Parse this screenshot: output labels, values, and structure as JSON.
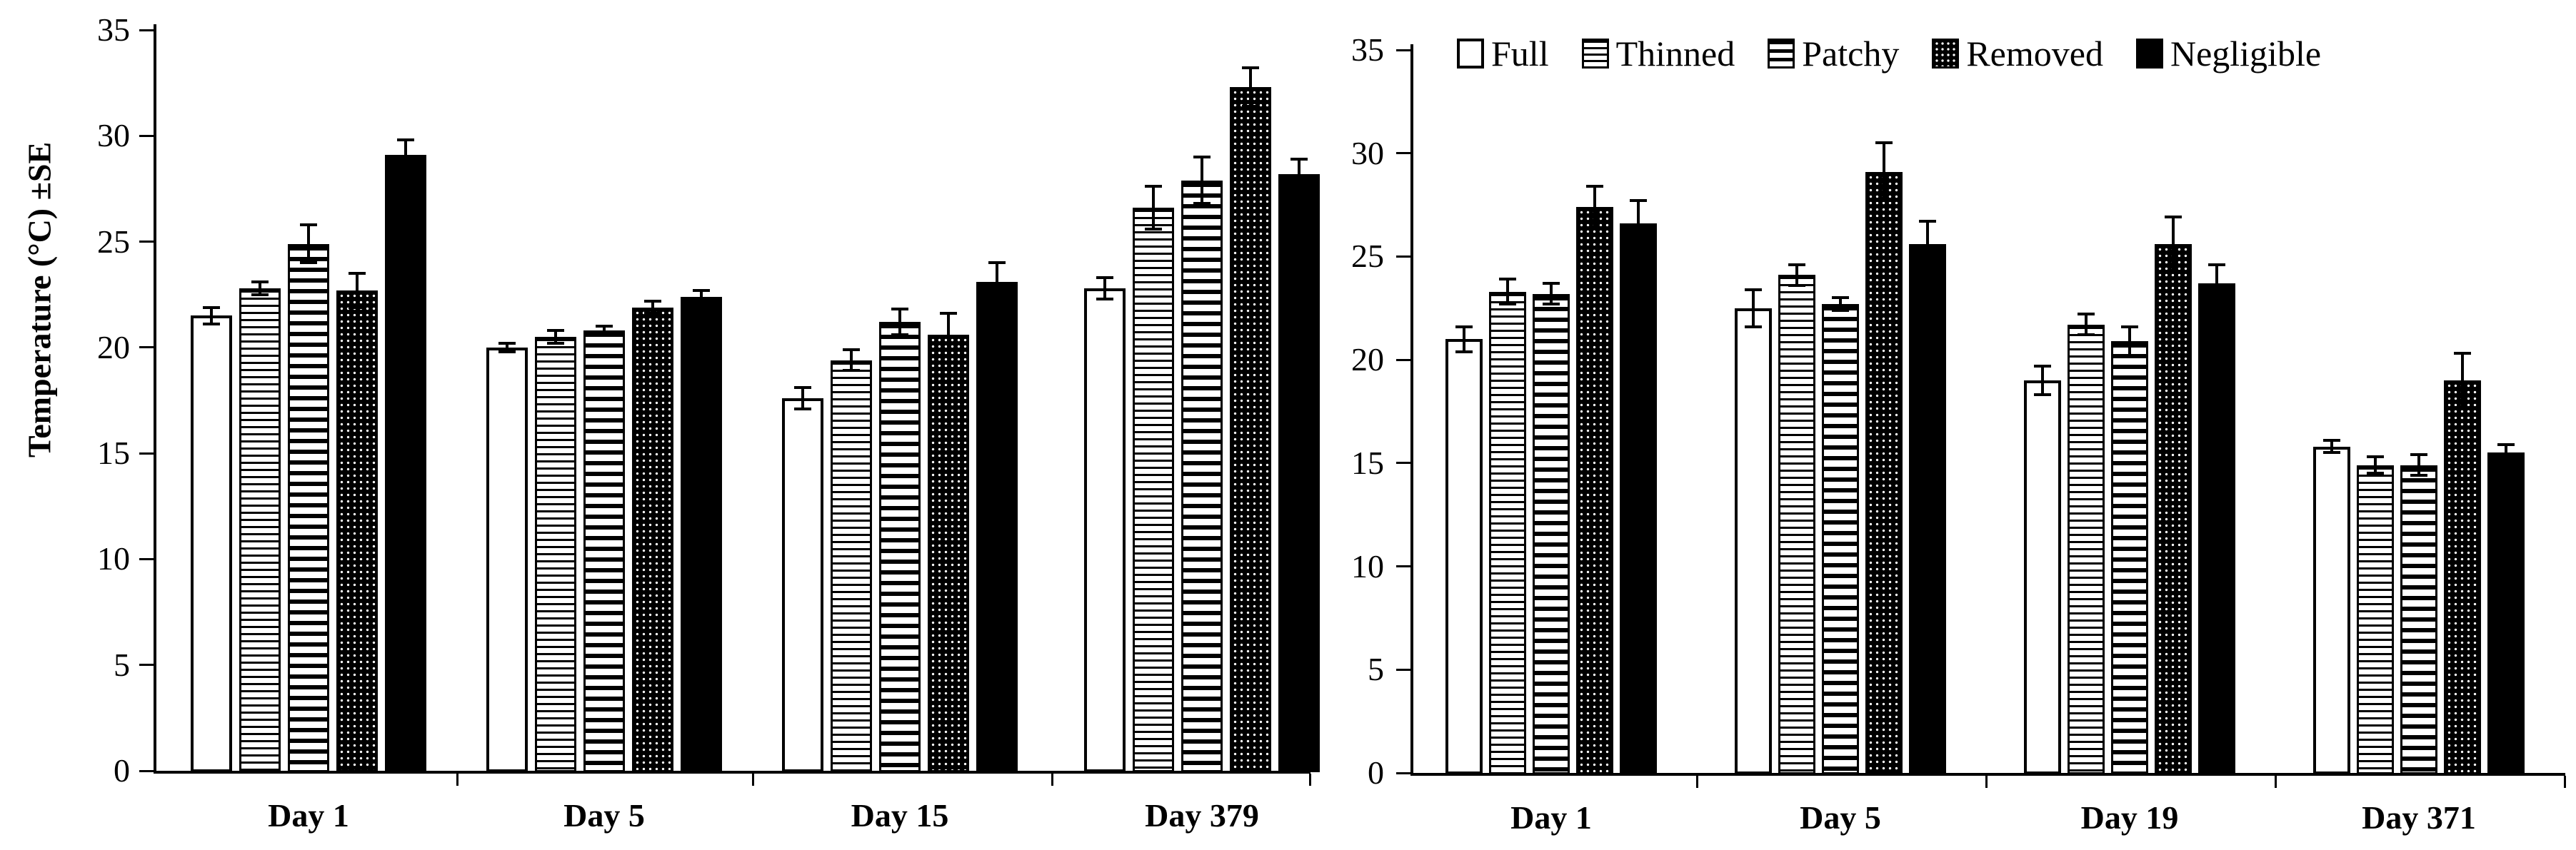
{
  "figure": {
    "background_color": "#ffffff",
    "foreground_color": "#000000",
    "y_axis_title": "Temperature (°C) ±SE"
  },
  "legend": {
    "position": "top of right panel, single row",
    "items": [
      {
        "label": "Full",
        "pattern": "open"
      },
      {
        "label": "Thinned",
        "pattern": "fine-horizontal-stripes"
      },
      {
        "label": "Patchy",
        "pattern": "coarse-horizontal-stripes"
      },
      {
        "label": "Removed",
        "pattern": "dots-on-black"
      },
      {
        "label": "Negligible",
        "pattern": "solid-black"
      }
    ]
  },
  "chart_data": [
    {
      "type": "bar",
      "panel": "left",
      "title": "",
      "xlabel": "",
      "ylabel": "Temperature (°C) ±SE",
      "ylim": [
        0,
        35
      ],
      "yticks": [
        0,
        5,
        10,
        15,
        20,
        25,
        30,
        35
      ],
      "grid": false,
      "error_bars": "±SE",
      "categories": [
        "Day 1",
        "Day 5",
        "Day 15",
        "Day 379"
      ],
      "series": [
        {
          "name": "Full",
          "pattern": "open",
          "values": [
            21.5,
            20.0,
            17.6,
            22.8
          ],
          "se": [
            0.4,
            0.2,
            0.5,
            0.5
          ]
        },
        {
          "name": "Thinned",
          "pattern": "fine-horizontal-stripes",
          "values": [
            22.8,
            20.5,
            19.4,
            26.6
          ],
          "se": [
            0.3,
            0.3,
            0.5,
            1.0
          ]
        },
        {
          "name": "Patchy",
          "pattern": "coarse-horizontal-stripes",
          "values": [
            24.9,
            20.8,
            21.2,
            27.9
          ],
          "se": [
            0.9,
            0.2,
            0.6,
            1.1
          ]
        },
        {
          "name": "Removed",
          "pattern": "dots-on-black",
          "values": [
            22.7,
            21.9,
            20.6,
            32.3
          ],
          "se": [
            0.8,
            0.3,
            1.0,
            0.9
          ]
        },
        {
          "name": "Negligible",
          "pattern": "solid-black",
          "values": [
            29.1,
            22.4,
            23.1,
            28.2
          ],
          "se": [
            0.7,
            0.3,
            0.9,
            0.7
          ]
        }
      ]
    },
    {
      "type": "bar",
      "panel": "right",
      "title": "",
      "xlabel": "",
      "ylabel": "",
      "ylim": [
        0,
        35
      ],
      "yticks": [
        0,
        5,
        10,
        15,
        20,
        25,
        30,
        35
      ],
      "grid": false,
      "error_bars": "±SE",
      "categories": [
        "Day 1",
        "Day 5",
        "Day 19",
        "Day 371"
      ],
      "series": [
        {
          "name": "Full",
          "pattern": "open",
          "values": [
            21.0,
            22.5,
            19.0,
            15.8
          ],
          "se": [
            0.6,
            0.9,
            0.7,
            0.3
          ]
        },
        {
          "name": "Thinned",
          "pattern": "fine-horizontal-stripes",
          "values": [
            23.3,
            24.1,
            21.7,
            14.9
          ],
          "se": [
            0.6,
            0.5,
            0.5,
            0.4
          ]
        },
        {
          "name": "Patchy",
          "pattern": "coarse-horizontal-stripes",
          "values": [
            23.2,
            22.7,
            20.9,
            14.9
          ],
          "se": [
            0.5,
            0.3,
            0.7,
            0.5
          ]
        },
        {
          "name": "Removed",
          "pattern": "dots-on-black",
          "values": [
            27.4,
            29.1,
            25.6,
            19.0
          ],
          "se": [
            1.0,
            1.4,
            1.3,
            1.3
          ]
        },
        {
          "name": "Negligible",
          "pattern": "solid-black",
          "values": [
            26.6,
            25.6,
            23.7,
            15.5
          ],
          "se": [
            1.1,
            1.1,
            0.9,
            0.4
          ]
        }
      ]
    }
  ]
}
